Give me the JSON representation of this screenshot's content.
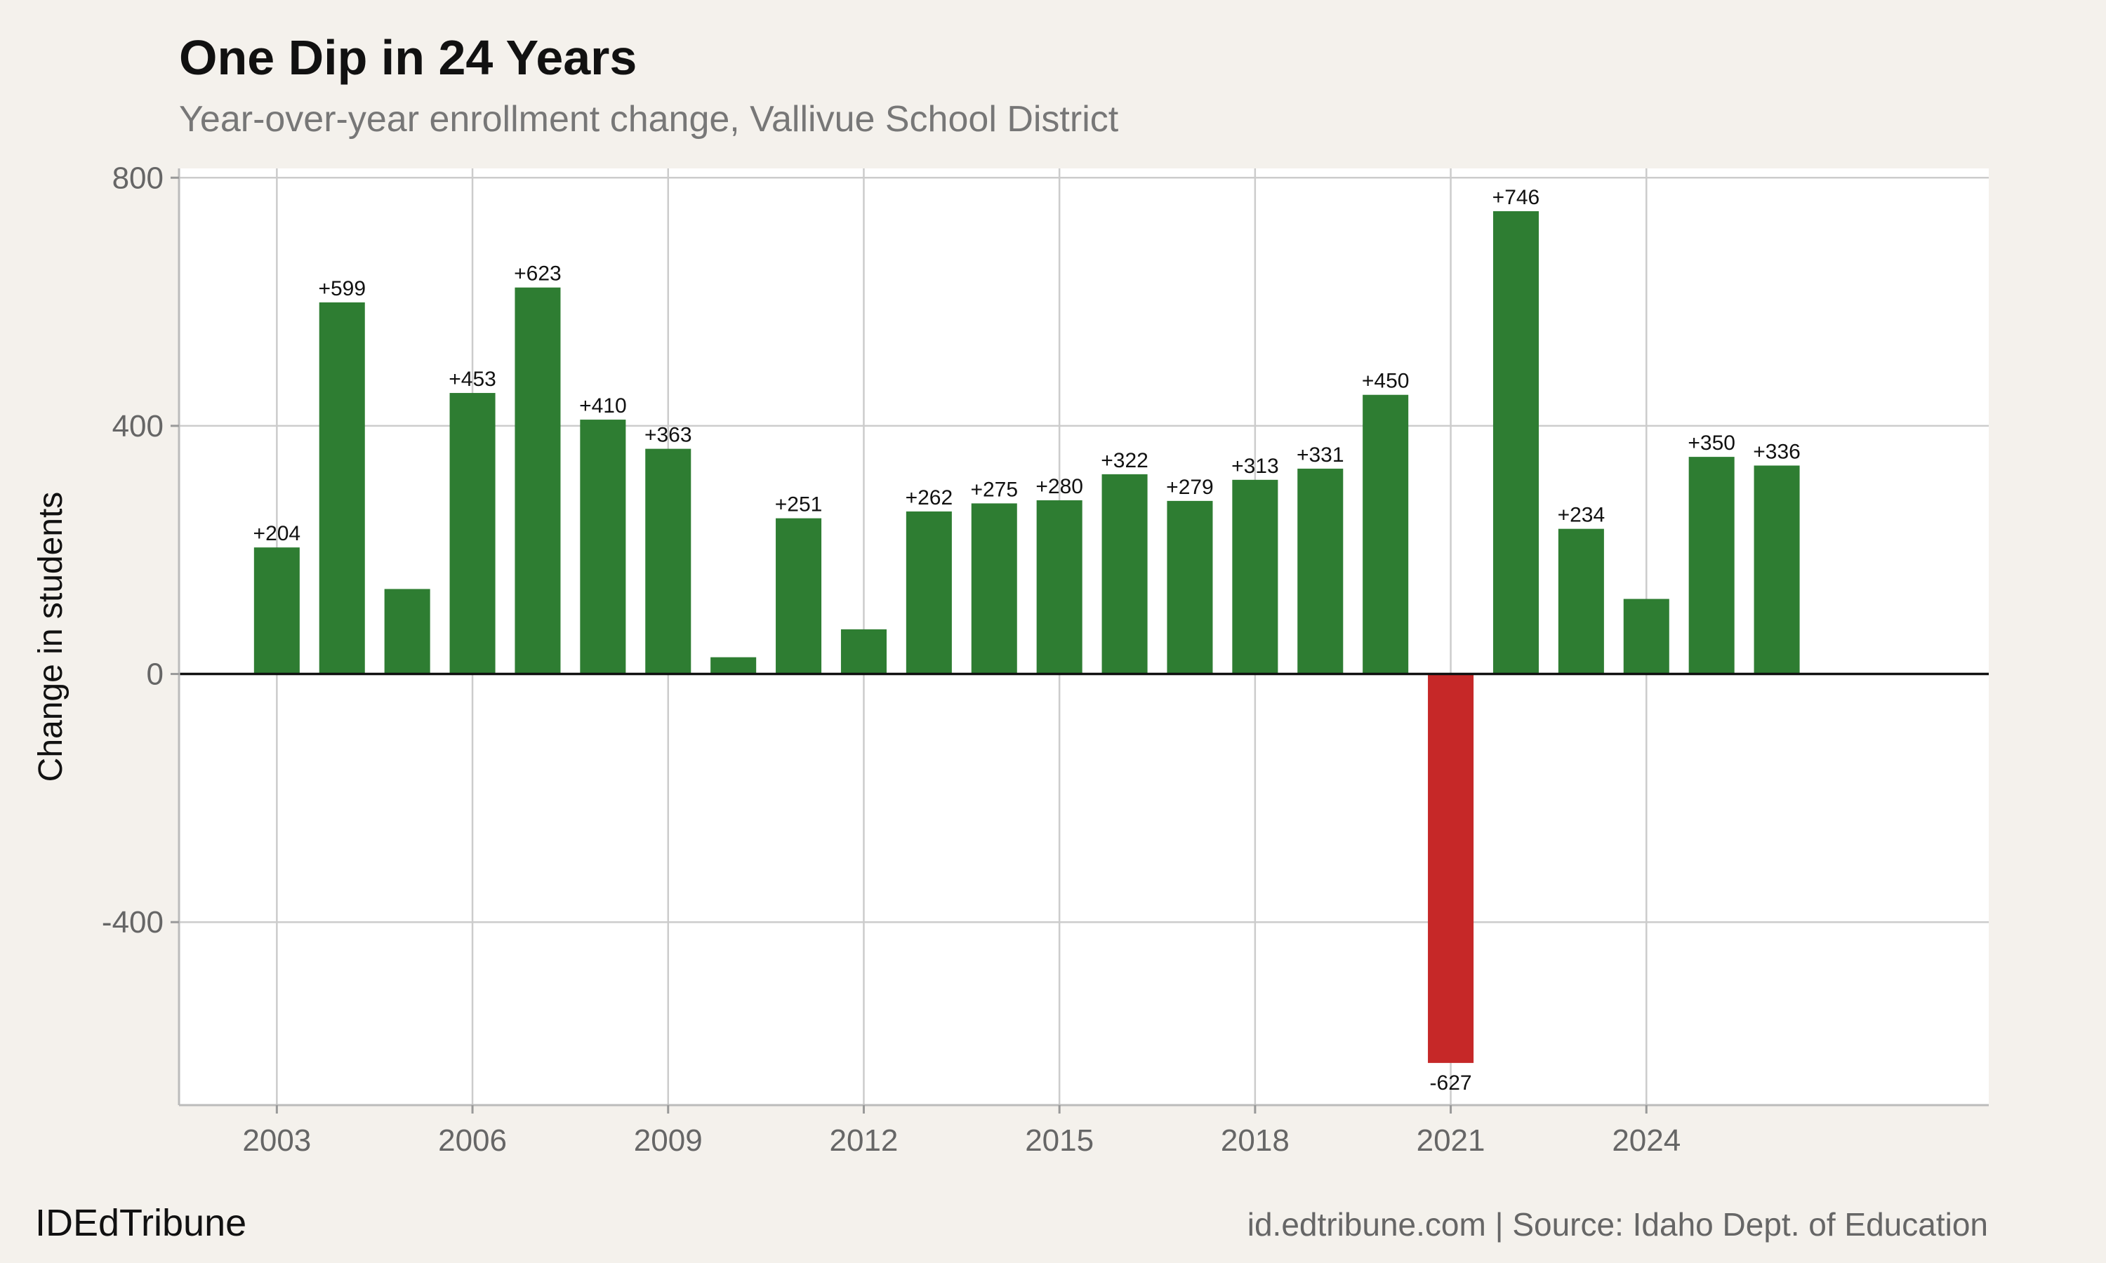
{
  "header": {
    "title": "One Dip in 24 Years",
    "subtitle": "Year-over-year enrollment change, Vallivue School District"
  },
  "footer": {
    "brand": "IDEdTribune",
    "source": "id.edtribune.com | Source: Idaho Dept. of Education"
  },
  "colors": {
    "positive": "#2e7d32",
    "negative": "#c62828",
    "grid": "#cccccc",
    "zero_line": "#111111",
    "background": "#f4f1ec",
    "panel": "#ffffff"
  },
  "chart_data": {
    "type": "bar",
    "title": "One Dip in 24 Years",
    "subtitle": "Year-over-year enrollment change, Vallivue School District",
    "xlabel": "",
    "ylabel": "Change in students",
    "categories": [
      2003,
      2004,
      2005,
      2006,
      2007,
      2008,
      2009,
      2010,
      2011,
      2012,
      2013,
      2014,
      2015,
      2016,
      2017,
      2018,
      2019,
      2020,
      2021,
      2022,
      2023,
      2024,
      2025,
      2026
    ],
    "values": [
      204,
      599,
      137,
      453,
      623,
      410,
      363,
      27,
      251,
      72,
      262,
      275,
      280,
      322,
      279,
      313,
      331,
      450,
      -627,
      746,
      234,
      121,
      350,
      336
    ],
    "labels": [
      "+204",
      "+599",
      "",
      "+453",
      "+623",
      "+410",
      "+363",
      "",
      "+251",
      "",
      "+262",
      "+275",
      "+280",
      "+322",
      "+279",
      "+313",
      "+331",
      "+450",
      "-627",
      "+746",
      "+234",
      "",
      "+350",
      "+336"
    ],
    "xticks": [
      2003,
      2006,
      2009,
      2012,
      2015,
      2018,
      2021,
      2024
    ],
    "xtick_labels": [
      "2003",
      "2006",
      "2009",
      "2012",
      "2015",
      "2018",
      "2021",
      "2024"
    ],
    "xlim": [
      2001.5,
      2029.25
    ],
    "yticks": [
      800,
      400,
      0,
      -400
    ],
    "ytick_labels": [
      "800",
      "400",
      "0",
      "-400"
    ],
    "ylim": [
      -695,
      815
    ],
    "grid": true
  }
}
